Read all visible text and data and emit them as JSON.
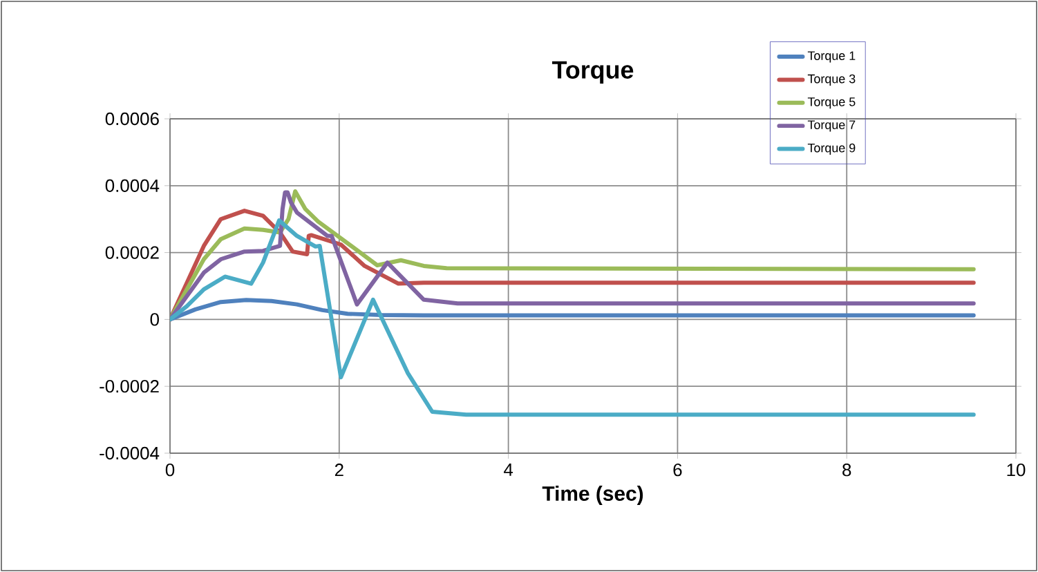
{
  "chart_data": {
    "type": "line",
    "title": "Torque",
    "xlabel": "Time (sec)",
    "xlim": [
      0,
      10
    ],
    "xticks": [
      0,
      2,
      4,
      6,
      8,
      10
    ],
    "ylim": [
      -0.0004,
      0.0006
    ],
    "yticks": [
      -0.0004,
      -0.0002,
      0,
      0.0002,
      0.0004,
      0.0006
    ],
    "grid": true,
    "legend": "top right",
    "marker": "none",
    "line_style": "solid",
    "series": [
      {
        "name": "Torque 1",
        "color": "#4f81bd",
        "x": [
          0,
          0.3,
          0.6,
          0.9,
          1.2,
          1.5,
          1.8,
          2.1,
          2.5,
          3,
          9.5
        ],
        "values": [
          0,
          3e-05,
          5.2e-05,
          5.8e-05,
          5.5e-05,
          4.5e-05,
          2.8e-05,
          1.7e-05,
          1.3e-05,
          1.2e-05,
          1.2e-05
        ]
      },
      {
        "name": "Torque 3",
        "color": "#c0504d",
        "x": [
          0,
          0.2,
          0.4,
          0.6,
          0.88,
          1.1,
          1.3,
          1.45,
          1.62,
          1.64,
          1.67,
          2.02,
          2.3,
          2.7,
          3,
          9.5
        ],
        "values": [
          0,
          0.00011,
          0.00022,
          0.0003,
          0.000325,
          0.00031,
          0.00026,
          0.000203,
          0.000195,
          0.00025,
          0.000252,
          0.000224,
          0.00016,
          0.000107,
          0.00011,
          0.00011
        ]
      },
      {
        "name": "Torque 5",
        "color": "#9bbb59",
        "x": [
          0,
          0.2,
          0.4,
          0.6,
          0.88,
          1.1,
          1.3,
          1.4,
          1.48,
          1.6,
          1.75,
          2.12,
          2.45,
          2.73,
          3.0,
          3.27,
          9.5
        ],
        "values": [
          0,
          9e-05,
          0.00018,
          0.00024,
          0.000272,
          0.000268,
          0.00026,
          0.0003,
          0.000383,
          0.00033,
          0.000293,
          0.000224,
          0.000162,
          0.000177,
          0.00016,
          0.000153,
          0.00015
        ]
      },
      {
        "name": "Torque 7",
        "color": "#8064a2",
        "x": [
          0,
          0.2,
          0.4,
          0.6,
          0.88,
          1.1,
          1.3,
          1.33,
          1.36,
          1.39,
          1.43,
          1.5,
          1.86,
          1.91,
          2.21,
          2.57,
          3.0,
          3.4,
          9.5
        ],
        "values": [
          0,
          7e-05,
          0.00014,
          0.00018,
          0.000203,
          0.000205,
          0.00022,
          0.00033,
          0.00038,
          0.00038,
          0.00035,
          0.00032,
          0.00025,
          0.00025,
          4.5e-05,
          0.00017,
          5.9e-05,
          4.8e-05,
          4.8e-05
        ]
      },
      {
        "name": "Torque 9",
        "color": "#4bacc6",
        "x": [
          0,
          0.2,
          0.4,
          0.65,
          0.96,
          1.1,
          1.29,
          1.5,
          1.72,
          1.77,
          2.02,
          2.4,
          2.81,
          3.1,
          3.5,
          9.5
        ],
        "values": [
          0,
          4e-05,
          9e-05,
          0.000128,
          0.000107,
          0.00017,
          0.000296,
          0.00025,
          0.000218,
          0.00022,
          -0.000173,
          5.9e-05,
          -0.00016,
          -0.000276,
          -0.000285,
          -0.000285
        ]
      }
    ]
  }
}
